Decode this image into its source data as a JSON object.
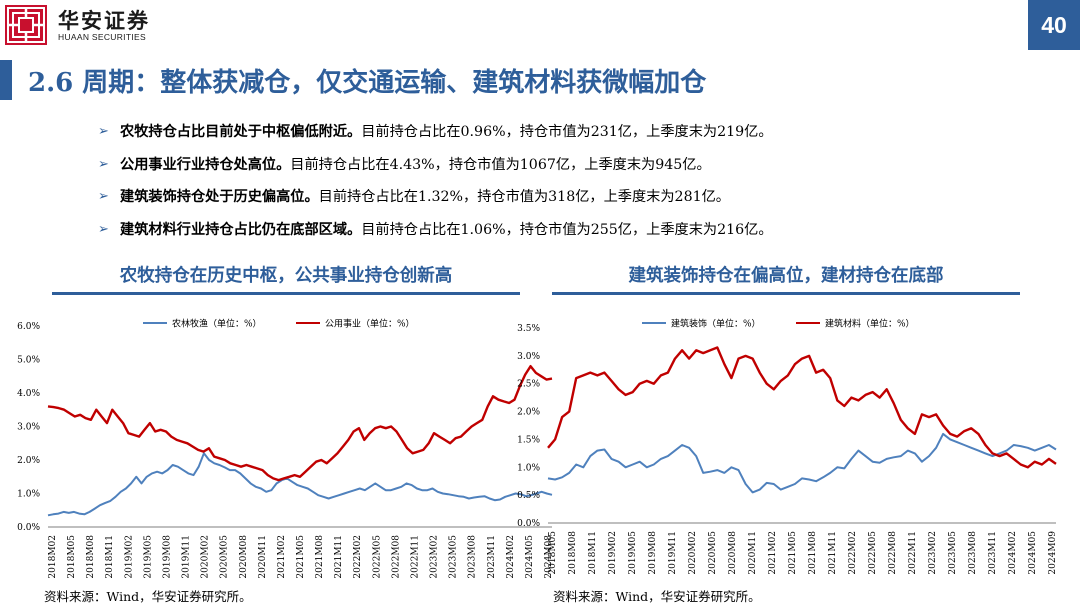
{
  "header": {
    "brand_cn": "华安证券",
    "brand_en": "HUAAN SECURITIES",
    "page_number": "40"
  },
  "title": "2.6 周期：整体获减仓，仅交通运输、建筑材料获微幅加仓",
  "bullets": [
    {
      "bold": "农牧持仓占比目前处于中枢偏低附近。",
      "text": "目前持仓占比在0.96%，持仓市值为231亿，上季度末为219亿。"
    },
    {
      "bold": "公用事业行业持仓处高位。",
      "text": "目前持仓占比在4.43%，持仓市值为1067亿，上季度末为945亿。"
    },
    {
      "bold": "建筑装饰持仓处于历史偏高位。",
      "text": "目前持仓占比在1.32%，持仓市值为318亿，上季度末为281亿。"
    },
    {
      "bold": "建筑材料行业持仓占比仍在底部区域。",
      "text": "目前持仓占比在1.06%，持仓市值为255亿，上季度末为216亿。"
    }
  ],
  "left_panel": {
    "subtitle": "农牧持仓在历史中枢，公共事业持仓创新高",
    "source": "资料来源：Wind，华安证券研究所。"
  },
  "right_panel": {
    "subtitle": "建筑装饰持仓在偏高位，建材持仓在底部",
    "source": "资料来源：Wind，华安证券研究所。"
  },
  "colors": {
    "brand_blue": "#2e5e9a",
    "series_blue": "#4f81bd",
    "series_red": "#c00000"
  },
  "chart_data": [
    {
      "type": "line",
      "x_ticks": [
        "2018M02",
        "2018M05",
        "2018M08",
        "2018M11",
        "2019M02",
        "2019M05",
        "2019M08",
        "2019M11",
        "2020M02",
        "2020M05",
        "2020M08",
        "2020M11",
        "2021M02",
        "2021M05",
        "2021M08",
        "2021M11",
        "2022M02",
        "2022M05",
        "2022M08",
        "2022M11",
        "2023M02",
        "2023M05",
        "2023M08",
        "2023M11",
        "2024M02",
        "2024M05",
        "2024M08"
      ],
      "y_ticks": [
        "0.0%",
        "1.0%",
        "2.0%",
        "3.0%",
        "4.0%",
        "5.0%",
        "6.0%"
      ],
      "ylim": [
        0,
        6
      ],
      "legend": "top",
      "grid": false,
      "series": [
        {
          "name": "农林牧渔（单位：%）",
          "color": "#4f81bd",
          "values": [
            0.35,
            0.38,
            0.4,
            0.45,
            0.42,
            0.45,
            0.4,
            0.38,
            0.45,
            0.55,
            0.65,
            0.72,
            0.78,
            0.9,
            1.05,
            1.15,
            1.3,
            1.5,
            1.3,
            1.5,
            1.6,
            1.65,
            1.6,
            1.7,
            1.85,
            1.8,
            1.7,
            1.6,
            1.55,
            1.8,
            2.2,
            2.0,
            1.9,
            1.85,
            1.78,
            1.7,
            1.7,
            1.6,
            1.45,
            1.3,
            1.2,
            1.15,
            1.05,
            1.1,
            1.3,
            1.4,
            1.45,
            1.35,
            1.25,
            1.2,
            1.15,
            1.05,
            0.95,
            0.9,
            0.85,
            0.9,
            0.95,
            1.0,
            1.05,
            1.1,
            1.15,
            1.1,
            1.2,
            1.3,
            1.2,
            1.1,
            1.1,
            1.15,
            1.2,
            1.3,
            1.25,
            1.15,
            1.1,
            1.1,
            1.15,
            1.05,
            1.0,
            0.98,
            0.95,
            0.92,
            0.9,
            0.85,
            0.88,
            0.9,
            0.92,
            0.85,
            0.8,
            0.82,
            0.9,
            0.95,
            1.0,
            0.98,
            0.92,
            0.95,
            1.0,
            1.05,
            1.0,
            0.96
          ]
        },
        {
          "name": "公用事业（单位：%）",
          "color": "#c00000",
          "values": [
            3.6,
            3.58,
            3.55,
            3.5,
            3.4,
            3.3,
            3.35,
            3.25,
            3.2,
            3.5,
            3.3,
            3.1,
            3.5,
            3.3,
            3.1,
            2.8,
            2.75,
            2.7,
            2.9,
            3.1,
            2.85,
            2.9,
            2.85,
            2.7,
            2.6,
            2.55,
            2.5,
            2.4,
            2.3,
            2.25,
            2.35,
            2.1,
            2.05,
            2.0,
            1.9,
            1.85,
            1.8,
            1.85,
            1.8,
            1.75,
            1.7,
            1.55,
            1.45,
            1.4,
            1.45,
            1.5,
            1.55,
            1.5,
            1.65,
            1.8,
            1.95,
            2.0,
            1.9,
            2.05,
            2.2,
            2.4,
            2.6,
            2.85,
            2.95,
            2.6,
            2.8,
            2.95,
            3.0,
            2.95,
            3.0,
            2.85,
            2.6,
            2.35,
            2.2,
            2.25,
            2.3,
            2.5,
            2.8,
            2.7,
            2.6,
            2.5,
            2.65,
            2.7,
            2.85,
            3.0,
            3.1,
            3.2,
            3.6,
            3.9,
            3.8,
            3.75,
            3.7,
            3.8,
            4.2,
            4.55,
            4.8,
            4.6,
            4.5,
            4.4,
            4.43
          ]
        }
      ]
    },
    {
      "type": "line",
      "x_ticks": [
        "2018M05",
        "2018M08",
        "2018M11",
        "2019M02",
        "2019M05",
        "2019M08",
        "2019M11",
        "2020M02",
        "2020M05",
        "2020M08",
        "2020M11",
        "2021M02",
        "2021M05",
        "2021M08",
        "2021M11",
        "2022M02",
        "2022M05",
        "2022M08",
        "2022M11",
        "2023M02",
        "2023M05",
        "2023M08",
        "2023M11",
        "2024M02",
        "2024M05",
        "2024M09"
      ],
      "y_ticks": [
        "0.0%",
        "0.5%",
        "1.0%",
        "1.5%",
        "2.0%",
        "2.5%",
        "3.0%",
        "3.5%"
      ],
      "ylim": [
        0,
        3.5
      ],
      "legend": "top",
      "grid": false,
      "series": [
        {
          "name": "建筑装饰（单位：%）",
          "color": "#4f81bd",
          "values": [
            0.8,
            0.78,
            0.82,
            0.9,
            1.05,
            1.0,
            1.2,
            1.3,
            1.32,
            1.15,
            1.1,
            1.0,
            1.05,
            1.1,
            1.0,
            1.05,
            1.15,
            1.2,
            1.3,
            1.4,
            1.35,
            1.2,
            0.9,
            0.92,
            0.95,
            0.9,
            1.0,
            0.95,
            0.7,
            0.55,
            0.6,
            0.72,
            0.7,
            0.6,
            0.65,
            0.7,
            0.8,
            0.78,
            0.75,
            0.82,
            0.9,
            1.0,
            0.98,
            1.15,
            1.3,
            1.2,
            1.1,
            1.08,
            1.15,
            1.18,
            1.2,
            1.3,
            1.25,
            1.1,
            1.2,
            1.35,
            1.6,
            1.5,
            1.45,
            1.4,
            1.35,
            1.3,
            1.25,
            1.2,
            1.25,
            1.3,
            1.4,
            1.38,
            1.35,
            1.3,
            1.35,
            1.4,
            1.32
          ]
        },
        {
          "name": "建筑材料（单位：%）",
          "color": "#c00000",
          "values": [
            1.35,
            1.5,
            1.9,
            2.0,
            2.6,
            2.65,
            2.7,
            2.65,
            2.7,
            2.55,
            2.4,
            2.3,
            2.35,
            2.5,
            2.55,
            2.5,
            2.65,
            2.7,
            2.95,
            3.1,
            2.95,
            3.1,
            3.05,
            3.1,
            3.15,
            2.85,
            2.6,
            2.95,
            3.0,
            2.95,
            2.7,
            2.5,
            2.4,
            2.55,
            2.65,
            2.85,
            2.95,
            3.0,
            2.7,
            2.75,
            2.6,
            2.2,
            2.1,
            2.25,
            2.2,
            2.3,
            2.35,
            2.25,
            2.4,
            2.15,
            1.85,
            1.7,
            1.6,
            1.95,
            1.9,
            1.95,
            1.75,
            1.6,
            1.55,
            1.65,
            1.7,
            1.6,
            1.4,
            1.25,
            1.2,
            1.25,
            1.15,
            1.05,
            1.0,
            1.1,
            1.05,
            1.15,
            1.06
          ]
        }
      ]
    }
  ]
}
